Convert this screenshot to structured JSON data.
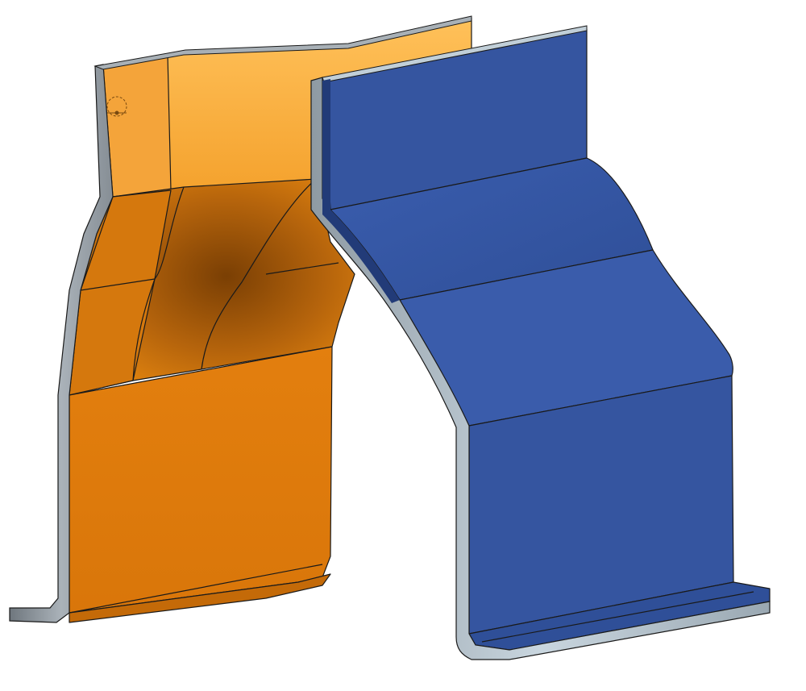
{
  "scene": {
    "background_color": "#ffffff",
    "parts": [
      {
        "id": "orange-part",
        "color": "#e07d12",
        "highlight_color": "#ffb84a",
        "shadow_color": "#8a4a06",
        "edge_color": "#9aa3ab"
      },
      {
        "id": "blue-part",
        "color": "#3555a0",
        "highlight_color": "#3d60b5",
        "shadow_color": "#223b78",
        "edge_color": "#b8c7d3"
      }
    ],
    "edge_line_color": "#1a1a1a",
    "icons": {
      "sketch-marker": "circle-crosshair"
    }
  }
}
